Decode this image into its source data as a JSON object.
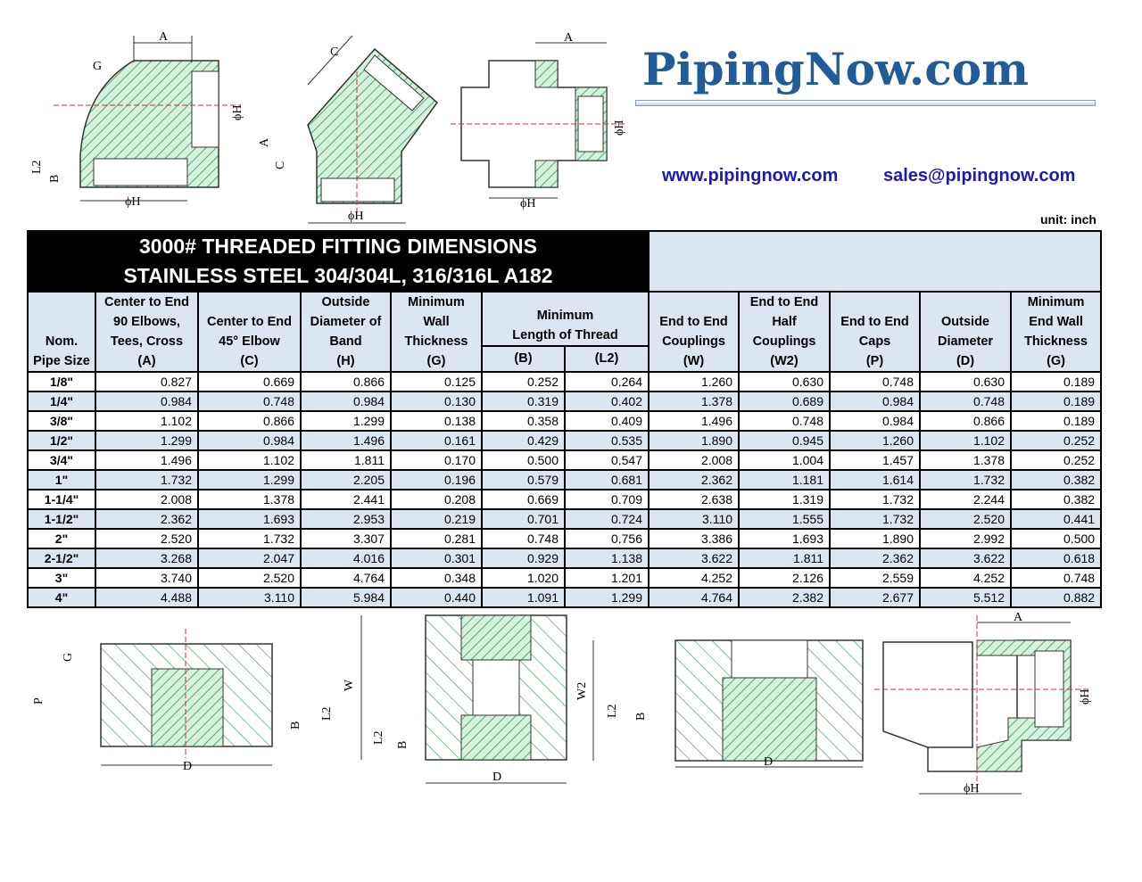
{
  "brand": {
    "logo": "PipingNow.com",
    "website": "www.pipingnow.com",
    "email": "sales@pipingnow.com",
    "accent": "#1f5c99",
    "link_color": "#1a1ab8"
  },
  "unit": "unit: inch",
  "title": {
    "line1": "3000# THREADED FITTING DIMENSIONS",
    "line2": "STAINLESS STEEL 304/304L, 316/316L  A182"
  },
  "headers": {
    "size": [
      "Nom.",
      "Pipe Size"
    ],
    "a": [
      "Center to End",
      "90 Elbows,",
      "Tees, Cross",
      "(A)"
    ],
    "c": [
      "Center to End",
      "45° Elbow",
      "(C)"
    ],
    "h": [
      "Outside",
      "Diameter of",
      "Band",
      "(H)"
    ],
    "g": [
      "Minimum",
      "Wall",
      "Thickness",
      "(G)"
    ],
    "thread": [
      "Minimum",
      "Length of Thread"
    ],
    "b": "(B)",
    "l2": "(L2)",
    "w": [
      "End to End",
      "Couplings",
      "(W)"
    ],
    "w2": [
      "End to End",
      "Half",
      "Couplings",
      "(W2)"
    ],
    "p": [
      "End to End",
      "Caps",
      "(P)"
    ],
    "d": [
      "Outside",
      "Diameter",
      "(D)"
    ],
    "g2": [
      "Minimum",
      "End Wall",
      "Thickness",
      "(G)"
    ]
  },
  "rows": [
    [
      "1/8\"",
      "0.827",
      "0.669",
      "0.866",
      "0.125",
      "0.252",
      "0.264",
      "1.260",
      "0.630",
      "0.748",
      "0.630",
      "0.189"
    ],
    [
      "1/4\"",
      "0.984",
      "0.748",
      "0.984",
      "0.130",
      "0.319",
      "0.402",
      "1.378",
      "0.689",
      "0.984",
      "0.748",
      "0.189"
    ],
    [
      "3/8\"",
      "1.102",
      "0.866",
      "1.299",
      "0.138",
      "0.358",
      "0.409",
      "1.496",
      "0.748",
      "0.984",
      "0.866",
      "0.189"
    ],
    [
      "1/2\"",
      "1.299",
      "0.984",
      "1.496",
      "0.161",
      "0.429",
      "0.535",
      "1.890",
      "0.945",
      "1.260",
      "1.102",
      "0.252"
    ],
    [
      "3/4\"",
      "1.496",
      "1.102",
      "1.811",
      "0.170",
      "0.500",
      "0.547",
      "2.008",
      "1.004",
      "1.457",
      "1.378",
      "0.252"
    ],
    [
      "1\"",
      "1.732",
      "1.299",
      "2.205",
      "0.196",
      "0.579",
      "0.681",
      "2.362",
      "1.181",
      "1.614",
      "1.732",
      "0.382"
    ],
    [
      "1-1/4\"",
      "2.008",
      "1.378",
      "2.441",
      "0.208",
      "0.669",
      "0.709",
      "2.638",
      "1.319",
      "1.732",
      "2.244",
      "0.382"
    ],
    [
      "1-1/2\"",
      "2.362",
      "1.693",
      "2.953",
      "0.219",
      "0.701",
      "0.724",
      "3.110",
      "1.555",
      "1.732",
      "2.520",
      "0.441"
    ],
    [
      "2\"",
      "2.520",
      "1.732",
      "3.307",
      "0.281",
      "0.748",
      "0.756",
      "3.386",
      "1.693",
      "1.890",
      "2.992",
      "0.500"
    ],
    [
      "2-1/2\"",
      "3.268",
      "2.047",
      "4.016",
      "0.301",
      "0.929",
      "1.138",
      "3.622",
      "1.811",
      "2.362",
      "3.622",
      "0.618"
    ],
    [
      "3\"",
      "3.740",
      "2.520",
      "4.764",
      "0.348",
      "1.020",
      "1.201",
      "4.252",
      "2.126",
      "2.559",
      "4.252",
      "0.748"
    ],
    [
      "4\"",
      "4.488",
      "3.110",
      "5.984",
      "0.440",
      "1.091",
      "1.299",
      "4.764",
      "2.382",
      "2.677",
      "5.512",
      "0.882"
    ]
  ],
  "drawing_labels": {
    "A": "A",
    "C": "C",
    "G": "G",
    "H": "ϕH",
    "B": "B",
    "L2": "L2",
    "P": "P",
    "D": "D",
    "W": "W",
    "W2": "W2"
  },
  "colors": {
    "hatch": "#3aa05a",
    "fill": "#c8ecd2",
    "header_bg": "#dce6f1",
    "title_bg": "#000000"
  }
}
